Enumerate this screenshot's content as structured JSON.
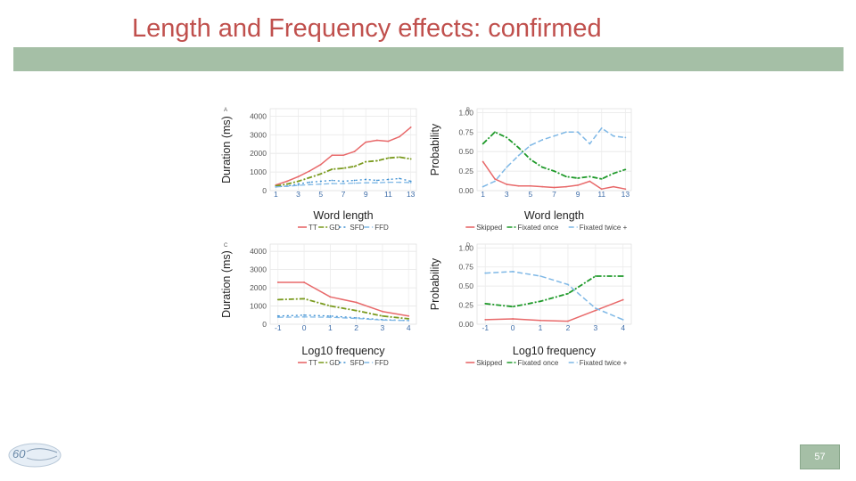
{
  "slide": {
    "title": "Length and Frequency effects: confirmed",
    "page_number": "57"
  },
  "colors": {
    "title": "#c0504d",
    "band": "#a5bfa6",
    "tt": "#e8696a",
    "gd": "#7a9a1e",
    "sfd": "#3d8fd1",
    "ffd": "#7fb8e6",
    "skipped": "#e8696a",
    "once": "#1f9a2a",
    "twice": "#7fb8e6"
  },
  "chart_data": [
    {
      "panel_letter": "A",
      "type": "line",
      "xlabel": "Word length",
      "ylabel": "Duration (ms)",
      "xlim": [
        0.5,
        13.5
      ],
      "ylim": [
        0,
        4400
      ],
      "x_ticks": [
        "1",
        "3",
        "5",
        "7",
        "9",
        "11",
        "13"
      ],
      "y_ticks": [
        "0",
        "1000",
        "2000",
        "3000",
        "4000"
      ],
      "x": [
        1,
        2,
        3,
        4,
        5,
        6,
        7,
        8,
        9,
        10,
        11,
        12,
        13
      ],
      "series": [
        {
          "name": "TT",
          "values": [
            300,
            500,
            750,
            1050,
            1400,
            1900,
            1900,
            2100,
            2600,
            2700,
            2650,
            2900,
            3400
          ]
        },
        {
          "name": "GD",
          "values": [
            250,
            350,
            500,
            700,
            900,
            1150,
            1200,
            1300,
            1550,
            1600,
            1750,
            1800,
            1700
          ]
        },
        {
          "name": "SFD",
          "values": [
            200,
            250,
            350,
            450,
            500,
            550,
            500,
            550,
            600,
            550,
            600,
            650,
            500
          ]
        },
        {
          "name": "FFD",
          "values": [
            200,
            230,
            280,
            320,
            350,
            380,
            380,
            400,
            420,
            420,
            450,
            450,
            430
          ]
        }
      ],
      "legend": [
        "TT",
        "GD",
        "SFD",
        "FFD"
      ]
    },
    {
      "panel_letter": "B",
      "type": "line",
      "xlabel": "Word length",
      "ylabel": "Probability",
      "xlim": [
        0.5,
        13.5
      ],
      "ylim": [
        0,
        1.05
      ],
      "x_ticks": [
        "1",
        "3",
        "5",
        "7",
        "9",
        "11",
        "13"
      ],
      "y_ticks": [
        "0.00",
        "0.25",
        "0.50",
        "0.75",
        "1.00"
      ],
      "x": [
        1,
        2,
        3,
        4,
        5,
        6,
        7,
        8,
        9,
        10,
        11,
        12,
        13
      ],
      "series": [
        {
          "name": "Skipped",
          "values": [
            0.37,
            0.15,
            0.08,
            0.06,
            0.06,
            0.05,
            0.04,
            0.05,
            0.07,
            0.12,
            0.02,
            0.05,
            0.02
          ]
        },
        {
          "name": "Fixated once",
          "values": [
            0.6,
            0.75,
            0.68,
            0.55,
            0.4,
            0.3,
            0.25,
            0.18,
            0.16,
            0.18,
            0.15,
            0.22,
            0.27
          ]
        },
        {
          "name": "Fixated twice +",
          "values": [
            0.05,
            0.12,
            0.3,
            0.45,
            0.58,
            0.65,
            0.7,
            0.75,
            0.75,
            0.6,
            0.8,
            0.7,
            0.68
          ]
        }
      ],
      "legend": [
        "Skipped",
        "Fixated once",
        "Fixated twice +"
      ]
    },
    {
      "panel_letter": "C",
      "type": "line",
      "xlabel": "Log10 frequency",
      "ylabel": "Duration (ms)",
      "xlim": [
        -1.3,
        4.3
      ],
      "ylim": [
        0,
        4400
      ],
      "x_ticks": [
        "-1",
        "0",
        "1",
        "2",
        "3",
        "4"
      ],
      "y_ticks": [
        "0",
        "1000",
        "2000",
        "3000",
        "4000"
      ],
      "x": [
        -1,
        0,
        1,
        2,
        3,
        4
      ],
      "series": [
        {
          "name": "TT",
          "values": [
            2300,
            2300,
            1500,
            1200,
            700,
            450
          ]
        },
        {
          "name": "GD",
          "values": [
            1350,
            1400,
            1000,
            750,
            450,
            300
          ]
        },
        {
          "name": "SFD",
          "values": [
            450,
            500,
            450,
            350,
            250,
            200
          ]
        },
        {
          "name": "FFD",
          "values": [
            380,
            400,
            380,
            320,
            230,
            200
          ]
        }
      ],
      "legend": [
        "TT",
        "GD",
        "SFD",
        "FFD"
      ]
    },
    {
      "panel_letter": "D",
      "type": "line",
      "xlabel": "Log10 frequency",
      "ylabel": "Probability",
      "xlim": [
        -1.3,
        4.3
      ],
      "ylim": [
        0,
        1.05
      ],
      "x_ticks": [
        "-1",
        "0",
        "1",
        "2",
        "3",
        "4"
      ],
      "y_ticks": [
        "0.00",
        "0.25",
        "0.50",
        "0.75",
        "1.00"
      ],
      "x": [
        -1,
        0,
        1,
        2,
        3,
        4
      ],
      "series": [
        {
          "name": "Skipped",
          "values": [
            0.06,
            0.07,
            0.05,
            0.04,
            0.18,
            0.32
          ]
        },
        {
          "name": "Fixated once",
          "values": [
            0.27,
            0.23,
            0.3,
            0.4,
            0.63,
            0.63
          ]
        },
        {
          "name": "Fixated twice +",
          "values": [
            0.67,
            0.69,
            0.63,
            0.52,
            0.21,
            0.06
          ]
        }
      ],
      "legend": [
        "Skipped",
        "Fixated once",
        "Fixated twice +"
      ]
    }
  ]
}
